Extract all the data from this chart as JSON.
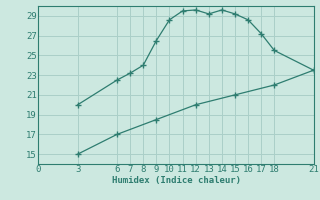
{
  "upper_x": [
    3,
    6,
    7,
    8,
    9,
    10,
    11,
    12,
    13,
    14,
    15,
    16,
    17,
    18,
    21
  ],
  "upper_y": [
    20.0,
    22.5,
    23.2,
    24.0,
    26.5,
    28.6,
    29.5,
    29.6,
    29.2,
    29.6,
    29.2,
    28.6,
    27.2,
    25.5,
    23.5
  ],
  "lower_x": [
    3,
    6,
    9,
    12,
    15,
    18,
    21
  ],
  "lower_y": [
    15.0,
    17.0,
    18.5,
    20.0,
    21.0,
    22.0,
    23.5
  ],
  "line_color": "#2e7d70",
  "bg_color": "#cce8e0",
  "grid_color": "#aacfc8",
  "xlabel": "Humidex (Indice chaleur)",
  "xlim": [
    0,
    21
  ],
  "ylim": [
    14,
    30
  ],
  "xticks": [
    0,
    3,
    6,
    7,
    8,
    9,
    10,
    11,
    12,
    13,
    14,
    15,
    16,
    17,
    18,
    21
  ],
  "yticks": [
    15,
    17,
    19,
    21,
    23,
    25,
    27,
    29
  ],
  "fontsize": 6.5
}
